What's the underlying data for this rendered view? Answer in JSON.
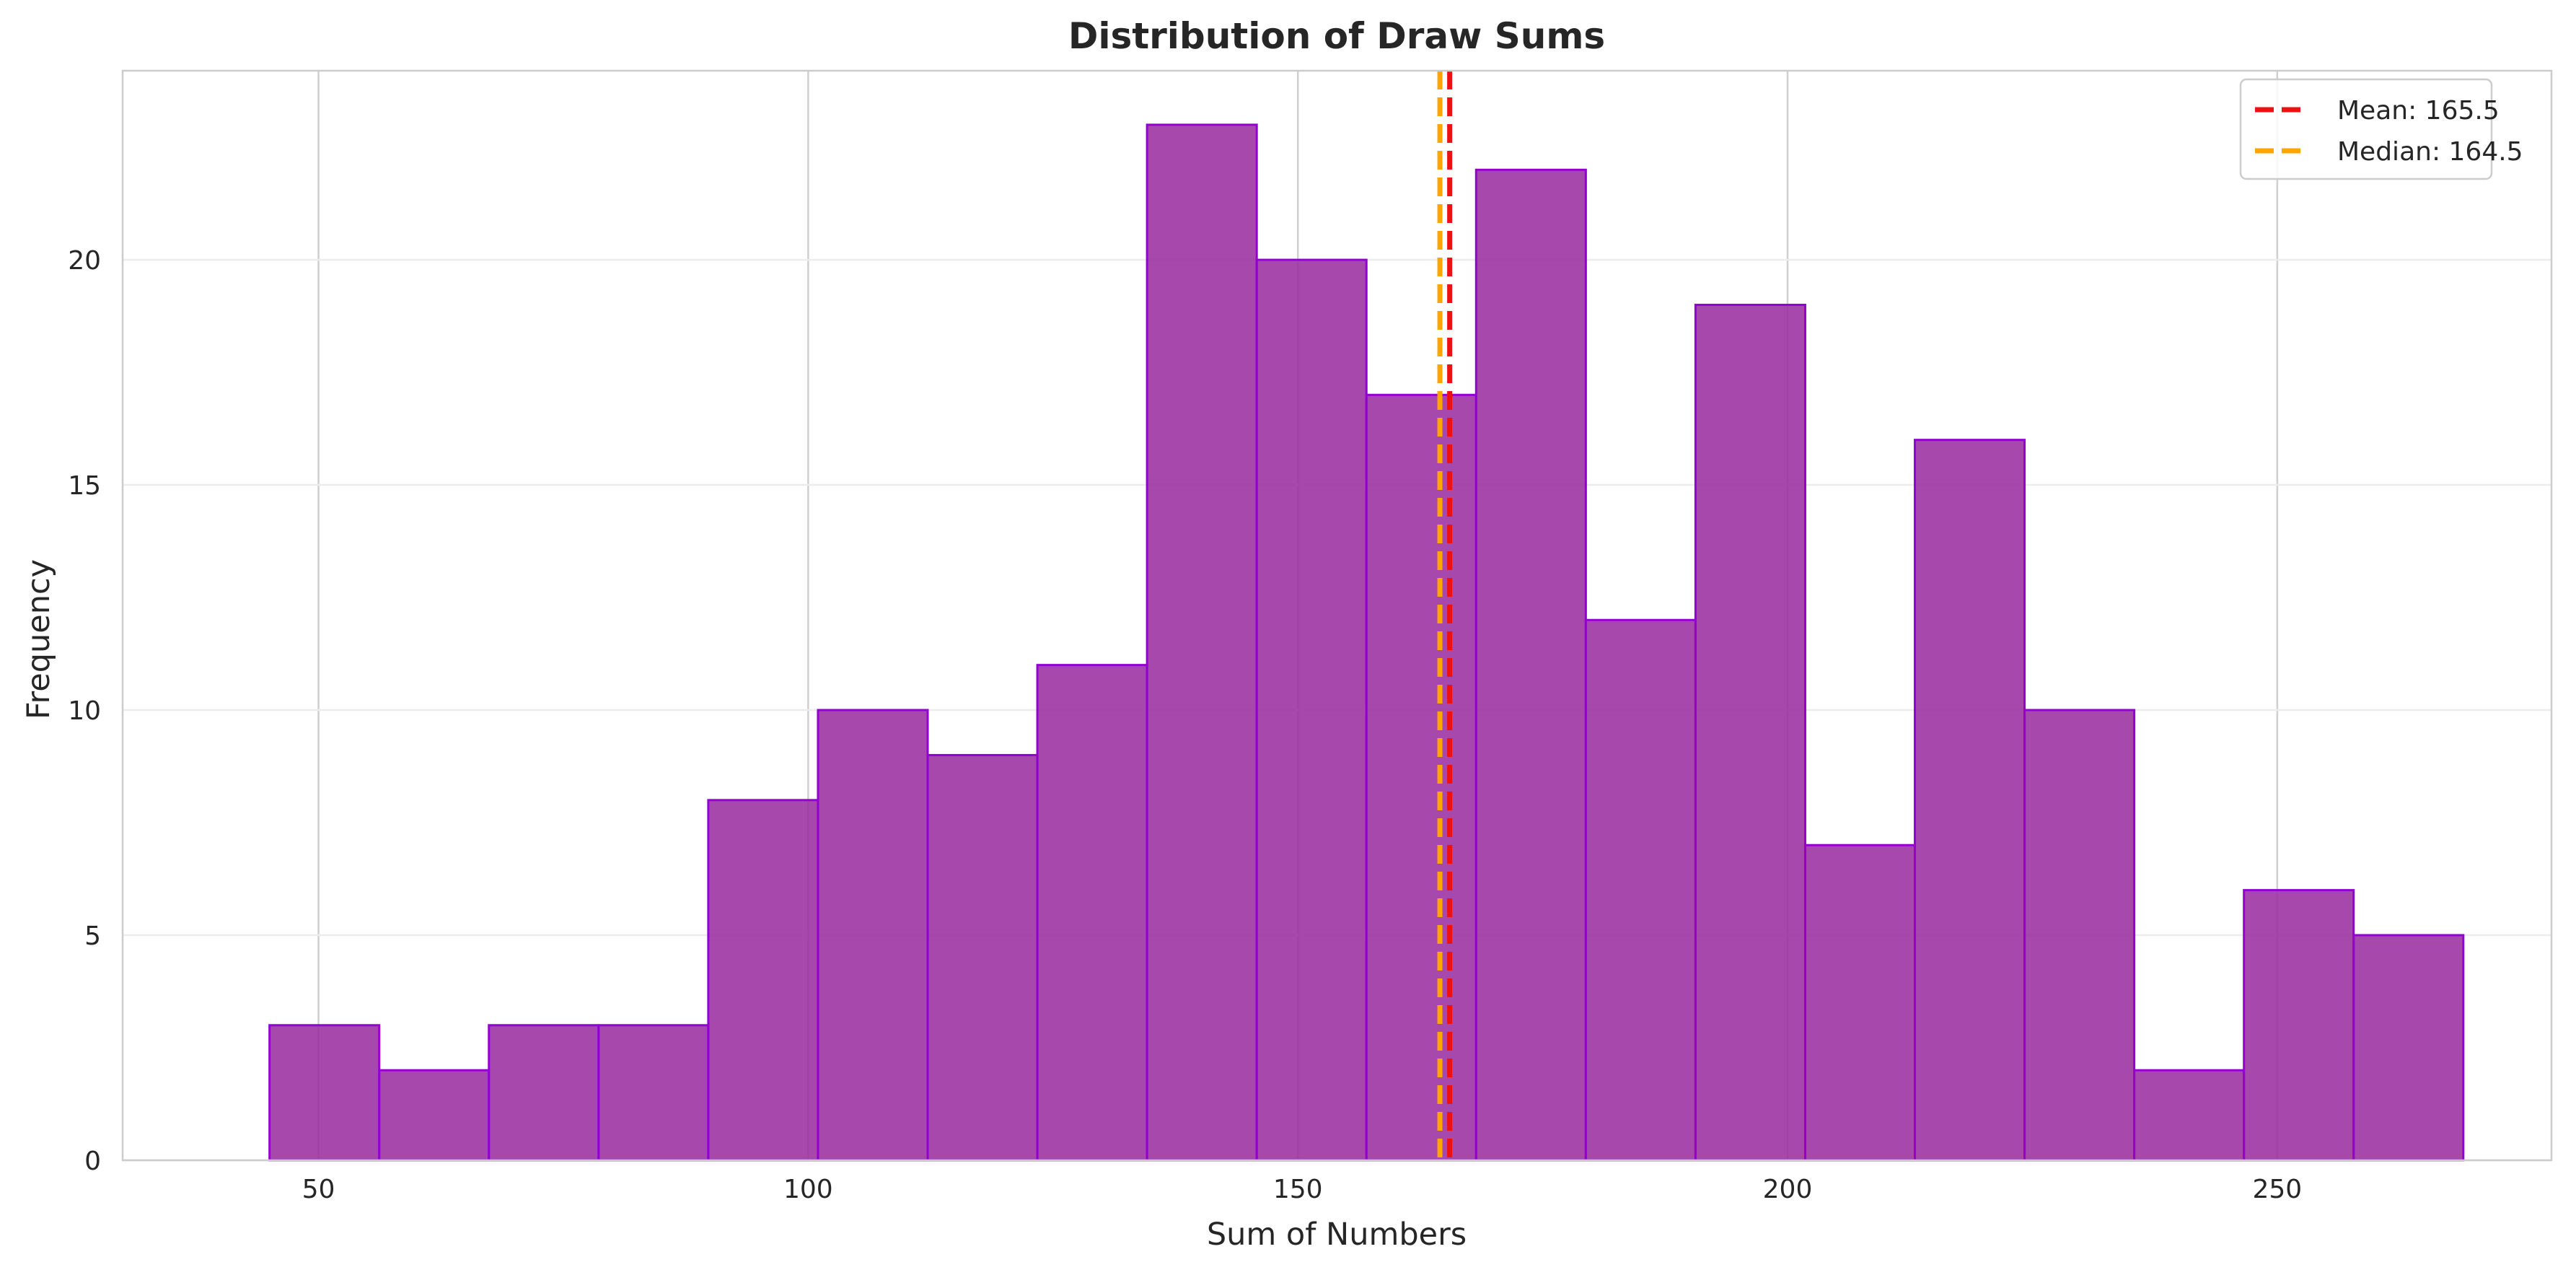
{
  "chart_data": {
    "type": "bar",
    "title": "Distribution of Draw Sums",
    "xlabel": "Sum of Numbers",
    "ylabel": "Frequency",
    "bin_edges": [
      45.0,
      56.2,
      67.4,
      78.6,
      89.8,
      101.0,
      112.2,
      123.4,
      134.6,
      145.8,
      157.0,
      168.2,
      179.4,
      190.6,
      201.8,
      213.0,
      224.2,
      235.4,
      246.6,
      257.8,
      269.0
    ],
    "values": [
      3,
      2,
      3,
      3,
      8,
      10,
      9,
      11,
      23,
      20,
      17,
      22,
      12,
      19,
      7,
      16,
      10,
      2,
      6,
      5
    ],
    "xlim": [
      30,
      278
    ],
    "ylim": [
      0,
      24.2
    ],
    "xticks": [
      50,
      100,
      150,
      200,
      250
    ],
    "yticks": [
      0,
      5,
      10,
      15,
      20
    ],
    "grid": true,
    "bar_color": "#9b30a0",
    "bar_edge_color": "#9400d3",
    "reference_lines": [
      {
        "label": "Mean: 165.5",
        "x": 165.5,
        "color": "#ee1111",
        "style": "dashed"
      },
      {
        "label": "Median: 164.5",
        "x": 164.5,
        "color": "#ffa500",
        "style": "dashed"
      }
    ],
    "legend_position": "top-right"
  }
}
